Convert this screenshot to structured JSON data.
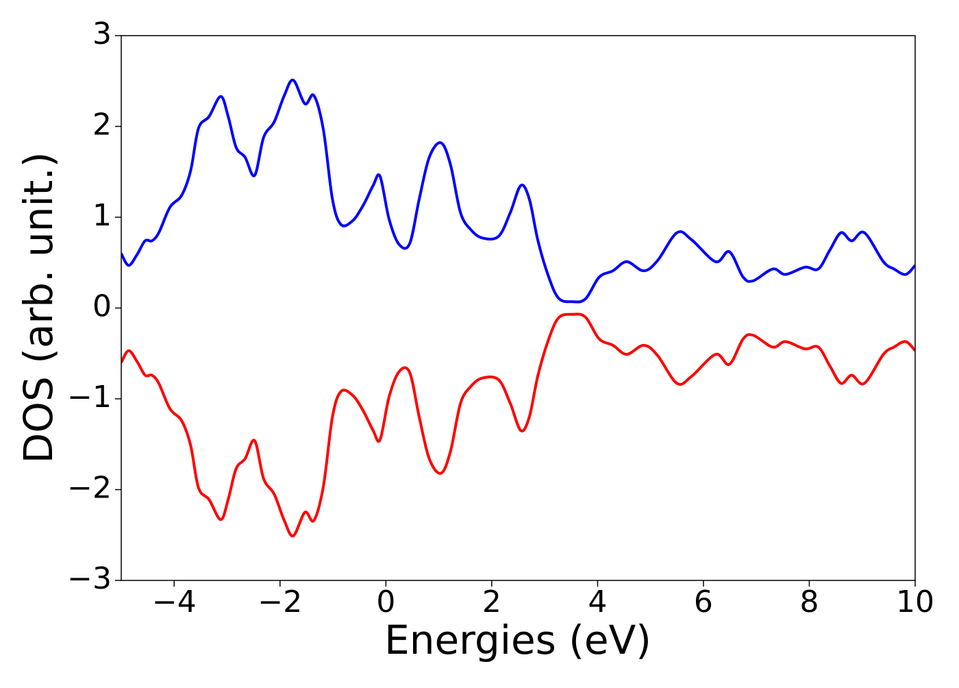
{
  "chart_data": {
    "type": "line",
    "xlabel": "Energies (eV)",
    "ylabel": "DOS (arb. unit.)",
    "x": [
      -5,
      -4.86,
      -4.7,
      -4.55,
      -4.42,
      -4.29,
      -4.08,
      -3.86,
      -3.69,
      -3.54,
      -3.34,
      -3.12,
      -2.98,
      -2.83,
      -2.66,
      -2.48,
      -2.31,
      -2.11,
      -1.92,
      -1.75,
      -1.53,
      -1.36,
      -1.18,
      -1.01,
      -0.85,
      -0.63,
      -0.43,
      -0.24,
      -0.11,
      0.06,
      0.25,
      0.45,
      0.63,
      0.82,
      1.04,
      1.22,
      1.41,
      1.61,
      1.83,
      2.13,
      2.35,
      2.55,
      2.71,
      2.87,
      3.06,
      3.26,
      3.52,
      3.77,
      4.03,
      4.29,
      4.55,
      4.87,
      5.13,
      5.5,
      5.78,
      6.23,
      6.49,
      6.75,
      6.94,
      7.31,
      7.55,
      7.92,
      8.17,
      8.39,
      8.6,
      8.8,
      9.04,
      9.4,
      9.6,
      9.82,
      10
    ],
    "series": [
      {
        "color": "#0000ff",
        "values": [
          0.6,
          0.47,
          0.59,
          0.74,
          0.74,
          0.83,
          1.11,
          1.24,
          1.51,
          1.98,
          2.11,
          2.33,
          2.11,
          1.77,
          1.66,
          1.46,
          1.88,
          2.05,
          2.34,
          2.51,
          2.25,
          2.34,
          1.96,
          1.2,
          0.92,
          0.96,
          1.13,
          1.35,
          1.45,
          0.98,
          0.7,
          0.71,
          1.2,
          1.66,
          1.82,
          1.58,
          1.05,
          0.86,
          0.77,
          0.79,
          1.05,
          1.35,
          1.2,
          0.75,
          0.37,
          0.11,
          0.07,
          0.1,
          0.34,
          0.41,
          0.51,
          0.41,
          0.52,
          0.83,
          0.75,
          0.51,
          0.62,
          0.34,
          0.3,
          0.43,
          0.37,
          0.45,
          0.43,
          0.64,
          0.83,
          0.74,
          0.83,
          0.51,
          0.43,
          0.37,
          0.47
        ]
      },
      {
        "color": "#ff0000",
        "values": [
          -0.6,
          -0.47,
          -0.59,
          -0.74,
          -0.74,
          -0.83,
          -1.11,
          -1.24,
          -1.51,
          -1.98,
          -2.11,
          -2.33,
          -2.11,
          -1.77,
          -1.66,
          -1.46,
          -1.88,
          -2.05,
          -2.34,
          -2.51,
          -2.25,
          -2.34,
          -1.96,
          -1.2,
          -0.92,
          -0.96,
          -1.13,
          -1.35,
          -1.45,
          -0.98,
          -0.7,
          -0.71,
          -1.2,
          -1.66,
          -1.82,
          -1.58,
          -1.05,
          -0.86,
          -0.77,
          -0.79,
          -1.05,
          -1.35,
          -1.2,
          -0.75,
          -0.37,
          -0.11,
          -0.07,
          -0.1,
          -0.34,
          -0.41,
          -0.51,
          -0.41,
          -0.52,
          -0.83,
          -0.75,
          -0.51,
          -0.62,
          -0.34,
          -0.3,
          -0.43,
          -0.37,
          -0.45,
          -0.43,
          -0.64,
          -0.83,
          -0.74,
          -0.83,
          -0.51,
          -0.43,
          -0.37,
          -0.47
        ]
      }
    ],
    "xlim": [
      -5,
      10
    ],
    "xticks": [
      {
        "value": -4,
        "label": "−4"
      },
      {
        "value": -2,
        "label": "−2"
      },
      0,
      2,
      4,
      6,
      8,
      10
    ],
    "ylim": [
      -3,
      3
    ],
    "yticks": [
      {
        "value": -3,
        "label": "−3"
      },
      {
        "value": -2,
        "label": "−2"
      },
      {
        "value": -1,
        "label": "−1"
      },
      0,
      1,
      2,
      3
    ],
    "grid": false
  }
}
